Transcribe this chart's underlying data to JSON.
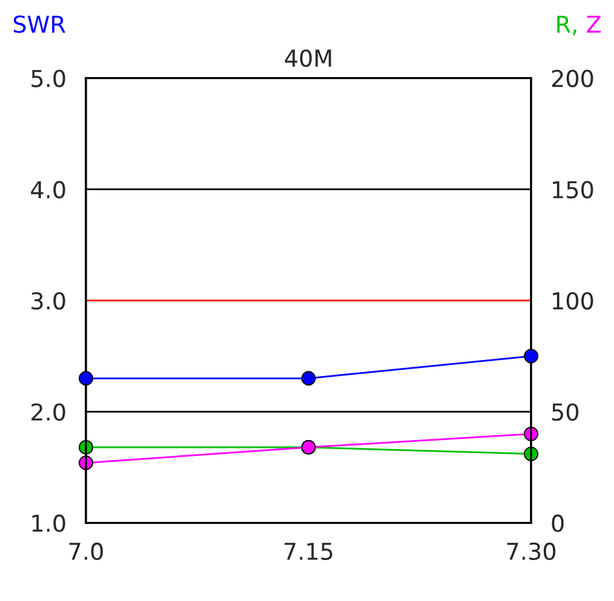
{
  "chart_data": {
    "type": "line",
    "title": "40M",
    "ylabel": "SWR",
    "y2label": "R, Z",
    "x": [
      7.0,
      7.15,
      7.3
    ],
    "series": [
      {
        "color": "#0000ff",
        "values": [
          2.3,
          2.3,
          2.5
        ]
      },
      {
        "color": "#00c000",
        "values": [
          34,
          34,
          31
        ],
        "axis": "y2"
      },
      {
        "color": "#ff00ff",
        "values": [
          27,
          34,
          40
        ],
        "axis": "y2"
      }
    ],
    "xlim": [
      7.0,
      7.3
    ],
    "xticks": [
      {
        "value": 7.0,
        "label": "7.0"
      },
      7.15,
      {
        "value": 7.3,
        "label": "7.30"
      }
    ],
    "ylim": [
      1.0,
      5.0
    ],
    "yticks": [
      {
        "value": 1.0,
        "label": "1.0"
      },
      {
        "value": 2.0,
        "label": "2.0"
      },
      {
        "value": 3.0,
        "label": "3.0"
      },
      {
        "value": 4.0,
        "label": "4.0"
      },
      {
        "value": 5.0,
        "label": "5.0"
      }
    ],
    "y2lim": [
      0,
      200
    ],
    "y2ticks": [
      0,
      50,
      100,
      150,
      200
    ],
    "ref_lines": [
      {
        "axis": "y",
        "value": 2.0,
        "color": "#000000"
      },
      {
        "axis": "y",
        "value": 3.0,
        "color": "#ff0000"
      },
      {
        "axis": "y",
        "value": 4.0,
        "color": "#000000"
      }
    ],
    "marker": "circle",
    "line_style": "solid",
    "grid": false,
    "legend": false
  }
}
